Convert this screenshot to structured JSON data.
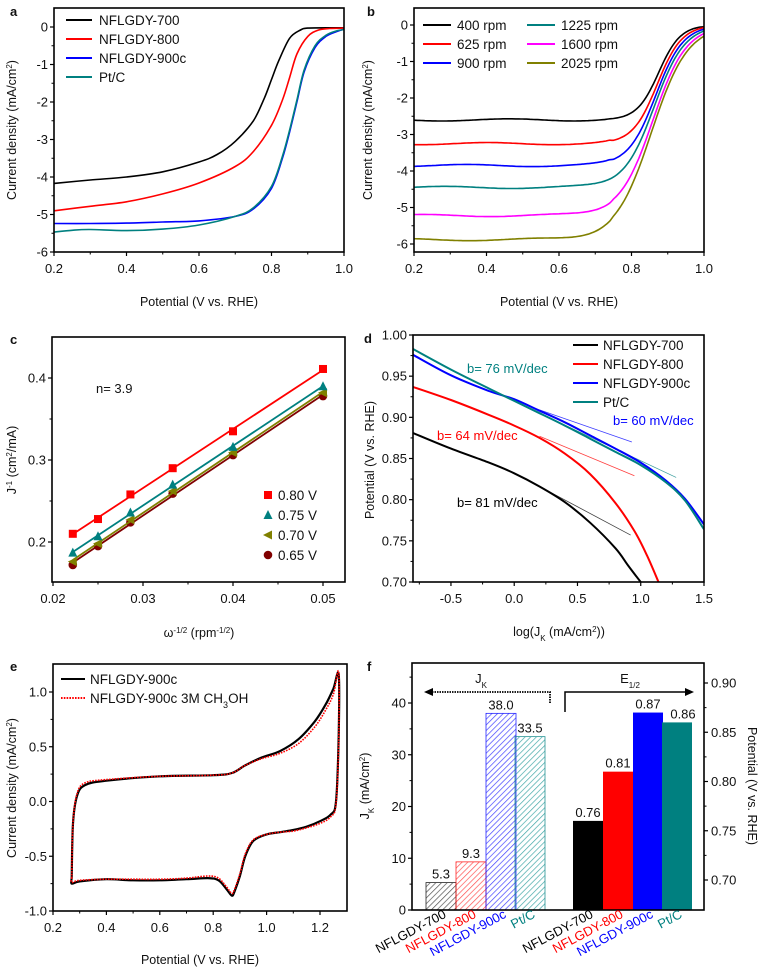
{
  "chart_data": [
    {
      "id": "a",
      "panel_label": "a",
      "type": "line",
      "title": "",
      "xlabel": "Potential (V vs. RHE)",
      "ylabel": "Current density (mA/cm²)",
      "xlim": [
        0.2,
        1.0
      ],
      "ylim": [
        -6,
        0.5
      ],
      "xticks": [
        0.2,
        0.4,
        0.6,
        0.8,
        1.0
      ],
      "xtick_labels": [
        "0.2",
        "0.4",
        "0.6",
        "0.8",
        "1.0"
      ],
      "yticks": [
        0,
        -1,
        -2,
        -3,
        -4,
        -5,
        -6
      ],
      "ytick_labels": [
        "0",
        "-1",
        "-2",
        "-3",
        "-4",
        "-5",
        "-6"
      ],
      "legend_position": "top-left",
      "series": [
        {
          "name": "NFLGDY-700",
          "color": "#000000",
          "x": [
            0.2,
            0.3,
            0.4,
            0.5,
            0.6,
            0.65,
            0.7,
            0.75,
            0.78,
            0.8,
            0.82,
            0.85,
            0.88,
            0.9,
            0.95,
            1.0
          ],
          "y": [
            -4.17,
            -4.08,
            -4.0,
            -3.86,
            -3.6,
            -3.4,
            -3.05,
            -2.5,
            -1.9,
            -1.4,
            -0.9,
            -0.3,
            -0.08,
            -0.03,
            -0.02,
            -0.02
          ]
        },
        {
          "name": "NFLGDY-800",
          "color": "#ff0000",
          "x": [
            0.2,
            0.3,
            0.4,
            0.5,
            0.6,
            0.7,
            0.75,
            0.8,
            0.83,
            0.85,
            0.87,
            0.9,
            0.93,
            0.96,
            1.0
          ],
          "y": [
            -4.9,
            -4.78,
            -4.66,
            -4.45,
            -4.16,
            -3.72,
            -3.32,
            -2.62,
            -1.95,
            -1.35,
            -0.72,
            -0.25,
            -0.08,
            -0.04,
            -0.03
          ]
        },
        {
          "name": "NFLGDY-900c",
          "color": "#0000ff",
          "x": [
            0.2,
            0.3,
            0.4,
            0.5,
            0.6,
            0.7,
            0.75,
            0.8,
            0.83,
            0.85,
            0.87,
            0.89,
            0.92,
            0.95,
            0.98,
            1.0
          ],
          "y": [
            -5.24,
            -5.24,
            -5.23,
            -5.2,
            -5.17,
            -5.05,
            -4.85,
            -4.3,
            -3.5,
            -2.8,
            -2.0,
            -1.2,
            -0.55,
            -0.25,
            -0.12,
            -0.06
          ]
        },
        {
          "name": "Pt/C",
          "color": "#008080",
          "x": [
            0.2,
            0.25,
            0.3,
            0.4,
            0.5,
            0.6,
            0.7,
            0.75,
            0.8,
            0.83,
            0.85,
            0.87,
            0.89,
            0.92,
            0.95,
            0.98,
            1.0
          ],
          "y": [
            -5.47,
            -5.42,
            -5.4,
            -5.43,
            -5.39,
            -5.28,
            -5.05,
            -4.82,
            -4.25,
            -3.45,
            -2.75,
            -1.95,
            -1.15,
            -0.5,
            -0.22,
            -0.1,
            -0.07
          ]
        }
      ]
    },
    {
      "id": "b",
      "panel_label": "b",
      "type": "line",
      "title": "",
      "xlabel": "Potential (V vs. RHE)",
      "ylabel": "Current density (mA/cm²)",
      "xlim": [
        0.2,
        1.0
      ],
      "ylim": [
        -6.5,
        0.5
      ],
      "xticks": [
        0.2,
        0.4,
        0.6,
        0.8,
        1.0
      ],
      "xtick_labels": [
        "0.2",
        "0.4",
        "0.6",
        "0.8",
        "1.0"
      ],
      "yticks": [
        0,
        -1,
        -2,
        -3,
        -4,
        -5,
        -6
      ],
      "ytick_labels": [
        "0",
        "-1",
        "-2",
        "-3",
        "-4",
        "-5",
        "-6"
      ],
      "legend_position": "top-left",
      "series": [
        {
          "name": "400 rpm",
          "color": "#000000",
          "plateau": -2.6
        },
        {
          "name": "625 rpm",
          "color": "#ff0000",
          "plateau": -3.25
        },
        {
          "name": "900 rpm",
          "color": "#0000ff",
          "plateau": -3.85
        },
        {
          "name": "1225 rpm",
          "color": "#008080",
          "plateau": -4.45
        },
        {
          "name": "1600 rpm",
          "color": "#ff00ff",
          "plateau": -5.22
        },
        {
          "name": "2025 rpm",
          "color": "#808000",
          "plateau": -5.88
        }
      ]
    },
    {
      "id": "c",
      "panel_label": "c",
      "type": "scatter",
      "title": "",
      "xlabel": "ω-1/2 (rpm-1/2)",
      "ylabel": "J-1 (cm²/mA)",
      "xlim": [
        0.02,
        0.052
      ],
      "ylim": [
        0.15,
        0.45
      ],
      "xticks": [
        0.02,
        0.03,
        0.04,
        0.05
      ],
      "xtick_labels": [
        "0.02",
        "0.03",
        "0.04",
        "0.05"
      ],
      "yticks": [
        0.2,
        0.3,
        0.4
      ],
      "ytick_labels": [
        "0.2",
        "0.3",
        "0.4"
      ],
      "legend_position": "bottom-right",
      "annotation": "n= 3.9",
      "x": [
        0.0222,
        0.025,
        0.0286,
        0.0333,
        0.04,
        0.05
      ],
      "series": [
        {
          "name": "0.80 V",
          "color": "#ff0000",
          "marker": "square",
          "y": [
            0.21,
            0.228,
            0.258,
            0.29,
            0.335,
            0.411
          ]
        },
        {
          "name": "0.75 V",
          "color": "#008080",
          "marker": "triangle-up",
          "y": [
            0.187,
            0.207,
            0.236,
            0.27,
            0.316,
            0.39
          ]
        },
        {
          "name": "0.70 V",
          "color": "#808000",
          "marker": "triangle-left",
          "y": [
            0.176,
            0.198,
            0.227,
            0.262,
            0.309,
            0.382
          ]
        },
        {
          "name": "0.65 V",
          "color": "#800000",
          "marker": "circle",
          "y": [
            0.172,
            0.195,
            0.224,
            0.259,
            0.306,
            0.378
          ]
        }
      ]
    },
    {
      "id": "d",
      "panel_label": "d",
      "type": "line",
      "title": "",
      "xlabel": "log(JK (mA/cm²))",
      "ylabel": "Potential (V vs. RHE)",
      "xlim": [
        -0.8,
        1.5
      ],
      "ylim": [
        0.7,
        1.0
      ],
      "xticks": [
        -0.5,
        0.0,
        0.5,
        1.0,
        1.5
      ],
      "xtick_labels": [
        "-0.5",
        "0.0",
        "0.5",
        "1.0",
        "1.5"
      ],
      "yticks": [
        0.7,
        0.75,
        0.8,
        0.85,
        0.9,
        0.95,
        1.0
      ],
      "ytick_labels": [
        "0.70",
        "0.75",
        "0.80",
        "0.85",
        "0.90",
        "0.95",
        "1.00"
      ],
      "legend_position": "top-right",
      "series": [
        {
          "name": "NFLGDY-700",
          "color": "#000000",
          "x": [
            -0.8,
            -0.5,
            -0.2,
            0.0,
            0.2,
            0.4,
            0.6,
            0.8,
            0.9,
            1.0
          ],
          "y": [
            0.881,
            0.862,
            0.845,
            0.832,
            0.816,
            0.797,
            0.772,
            0.741,
            0.72,
            0.7
          ]
        },
        {
          "name": "NFLGDY-800",
          "color": "#ff0000",
          "x": [
            -0.8,
            -0.5,
            -0.2,
            0.0,
            0.2,
            0.4,
            0.6,
            0.8,
            0.95,
            1.05,
            1.14
          ],
          "y": [
            0.937,
            0.921,
            0.903,
            0.89,
            0.875,
            0.856,
            0.831,
            0.796,
            0.762,
            0.732,
            0.7
          ]
        },
        {
          "name": "NFLGDY-900c",
          "color": "#0000ff",
          "x": [
            -0.8,
            -0.5,
            -0.2,
            0.0,
            0.2,
            0.4,
            0.6,
            0.8,
            1.0,
            1.2,
            1.35,
            1.5
          ],
          "y": [
            0.976,
            0.951,
            0.932,
            0.922,
            0.908,
            0.894,
            0.878,
            0.862,
            0.845,
            0.823,
            0.801,
            0.77
          ]
        },
        {
          "name": "Pt/C",
          "color": "#008080",
          "x": [
            -0.8,
            -0.5,
            -0.2,
            0.0,
            0.2,
            0.4,
            0.6,
            0.8,
            1.0,
            1.2,
            1.35,
            1.5
          ],
          "y": [
            0.983,
            0.958,
            0.935,
            0.92,
            0.905,
            0.89,
            0.874,
            0.858,
            0.842,
            0.821,
            0.799,
            0.764
          ]
        }
      ],
      "tafel_fits": [
        {
          "label": "b= 81 mV/dec",
          "color": "#000000",
          "x": [
            0.2,
            0.92
          ],
          "y": [
            0.816,
            0.757
          ]
        },
        {
          "label": "b= 64 mV/dec",
          "color": "#ff0000",
          "x": [
            0.2,
            0.95
          ],
          "y": [
            0.877,
            0.829
          ]
        },
        {
          "label": "b= 60 mV/dec",
          "color": "#0000ff",
          "x": [
            0.2,
            0.93
          ],
          "y": [
            0.909,
            0.87
          ]
        },
        {
          "label": "b= 76 mV/dec",
          "color": "#008080",
          "x": [
            0.2,
            1.28
          ],
          "y": [
            0.905,
            0.827
          ]
        }
      ]
    },
    {
      "id": "e",
      "panel_label": "e",
      "type": "line",
      "title": "",
      "xlabel": "Potential (V vs. RHE)",
      "ylabel": "Current density (mA/cm²)",
      "xlim": [
        0.2,
        1.3
      ],
      "ylim": [
        -1.0,
        1.25
      ],
      "xticks": [
        0.2,
        0.4,
        0.6,
        0.8,
        1.0,
        1.2
      ],
      "xtick_labels": [
        "0.2",
        "0.4",
        "0.6",
        "0.8",
        "1.0",
        "1.2"
      ],
      "yticks": [
        -1.0,
        -0.5,
        0.0,
        0.5,
        1.0
      ],
      "ytick_labels": [
        "-1.0",
        "-0.5",
        "0.0",
        "0.5",
        "1.0"
      ],
      "legend_position": "top-left",
      "series": [
        {
          "name": "NFLGDY-900c",
          "color": "#000000",
          "style": "solid",
          "x": [
            0.27,
            0.275,
            0.29,
            0.32,
            0.4,
            0.6,
            0.8,
            0.87,
            0.92,
            0.98,
            1.05,
            1.12,
            1.18,
            1.22,
            1.25,
            1.27,
            1.27,
            1.26,
            1.24,
            1.2,
            1.15,
            1.1,
            1.05,
            1.0,
            0.95,
            0.92,
            0.9,
            0.88,
            0.87,
            0.85,
            0.82,
            0.78,
            0.7,
            0.6,
            0.5,
            0.4,
            0.3,
            0.27,
            0.27
          ],
          "y": [
            -0.7,
            -0.2,
            0.05,
            0.15,
            0.19,
            0.23,
            0.24,
            0.26,
            0.33,
            0.4,
            0.46,
            0.57,
            0.73,
            0.88,
            1.03,
            1.16,
            0.6,
            0.0,
            -0.12,
            -0.18,
            -0.23,
            -0.26,
            -0.28,
            -0.3,
            -0.36,
            -0.5,
            -0.68,
            -0.82,
            -0.86,
            -0.8,
            -0.72,
            -0.7,
            -0.71,
            -0.72,
            -0.72,
            -0.71,
            -0.73,
            -0.75,
            -0.7
          ]
        },
        {
          "name": "NFLGDY-900c 3M CH3OH",
          "color": "#ff0000",
          "style": "dotted",
          "x": [
            0.27,
            0.275,
            0.29,
            0.32,
            0.4,
            0.6,
            0.8,
            0.87,
            0.92,
            0.98,
            1.05,
            1.12,
            1.18,
            1.22,
            1.25,
            1.27,
            1.27,
            1.26,
            1.24,
            1.2,
            1.15,
            1.1,
            1.05,
            1.0,
            0.95,
            0.92,
            0.9,
            0.88,
            0.87,
            0.85,
            0.82,
            0.78,
            0.7,
            0.6,
            0.5,
            0.4,
            0.3,
            0.27,
            0.27
          ],
          "y": [
            -0.7,
            -0.2,
            0.07,
            0.17,
            0.2,
            0.23,
            0.24,
            0.26,
            0.33,
            0.39,
            0.44,
            0.53,
            0.68,
            0.83,
            0.98,
            1.18,
            0.55,
            -0.02,
            -0.14,
            -0.2,
            -0.24,
            -0.27,
            -0.28,
            -0.3,
            -0.35,
            -0.48,
            -0.66,
            -0.8,
            -0.84,
            -0.78,
            -0.7,
            -0.68,
            -0.7,
            -0.71,
            -0.71,
            -0.71,
            -0.72,
            -0.74,
            -0.7
          ]
        }
      ]
    },
    {
      "id": "f",
      "panel_label": "f",
      "type": "bar",
      "title": "",
      "xlabel": "",
      "ylabel_left": "JK (mA/cm²)",
      "ylabel_right": "Potential (V vs. RHE)",
      "ylim_left": [
        0,
        48
      ],
      "ylim_right": [
        0.6695,
        0.9203
      ],
      "yticks_left": [
        0,
        10,
        20,
        30,
        40
      ],
      "ytick_labels_left": [
        "0",
        "10",
        "20",
        "30",
        "40"
      ],
      "yticks_right": [
        0.7,
        0.75,
        0.8,
        0.85,
        0.9
      ],
      "ytick_labels_right": [
        "0.70",
        "0.75",
        "0.80",
        "0.85",
        "0.90"
      ],
      "categories": [
        "NFLGDY-700",
        "NFLGDY-800",
        "NFLGDY-900c",
        "Pt/C"
      ],
      "category_colors": [
        "#000000",
        "#ff0000",
        "#0000ff",
        "#008080"
      ],
      "group_labels": {
        "jk": "JK",
        "e12": "E1/2"
      },
      "series": [
        {
          "name": "JK",
          "axis": "left",
          "fill": "hatched",
          "values": [
            5.3,
            9.3,
            38.0,
            33.5
          ],
          "value_labels": [
            "5.3",
            "9.3",
            "38.0",
            "33.5"
          ]
        },
        {
          "name": "E1/2",
          "axis": "right",
          "fill": "solid",
          "values": [
            0.76,
            0.81,
            0.87,
            0.86
          ],
          "value_labels": [
            "0.76",
            "0.81",
            "0.87",
            "0.86"
          ]
        }
      ]
    }
  ]
}
